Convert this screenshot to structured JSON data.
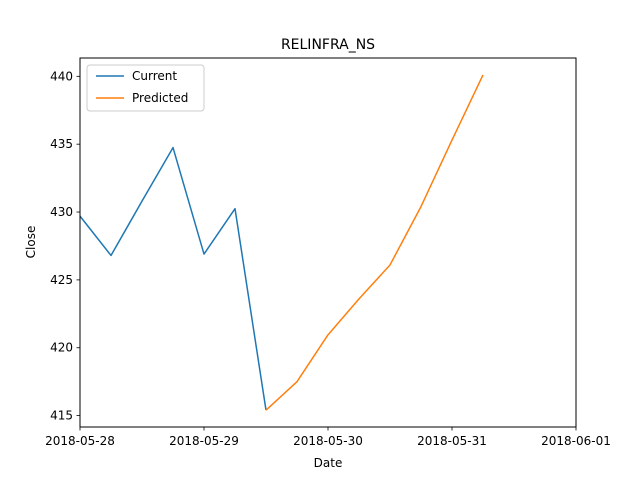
{
  "chart_data": {
    "type": "line",
    "title": "RELINFRA_NS",
    "xlabel": "Date",
    "ylabel": "Close",
    "xlim": [
      "2018-05-28",
      "2018-06-01"
    ],
    "ylim": [
      414.16,
      441.35
    ],
    "x_ticks": [
      "2018-05-28",
      "2018-05-29",
      "2018-05-30",
      "2018-05-31",
      "2018-06-01"
    ],
    "y_ticks": [
      415,
      420,
      425,
      430,
      435,
      440
    ],
    "grid": false,
    "legend_position": "top-left",
    "series": [
      {
        "name": "Current",
        "color": "#1f77b4",
        "x": [
          "2018-05-28 00:00",
          "2018-05-28 06:00",
          "2018-05-28 12:00",
          "2018-05-28 18:00",
          "2018-05-29 00:00",
          "2018-05-29 06:00",
          "2018-05-29 12:00"
        ],
        "y": [
          429.7,
          426.8,
          430.8,
          434.75,
          426.9,
          430.25,
          415.4
        ]
      },
      {
        "name": "Predicted",
        "color": "#ff7f0e",
        "x": [
          "2018-05-29 12:00",
          "2018-05-29 18:00",
          "2018-05-30 00:00",
          "2018-05-30 06:00",
          "2018-05-30 12:00",
          "2018-05-30 18:00",
          "2018-05-31 00:00",
          "2018-05-31 06:00"
        ],
        "y": [
          415.4,
          417.5,
          420.95,
          423.6,
          426.1,
          430.4,
          435.3,
          440.1
        ]
      }
    ]
  }
}
